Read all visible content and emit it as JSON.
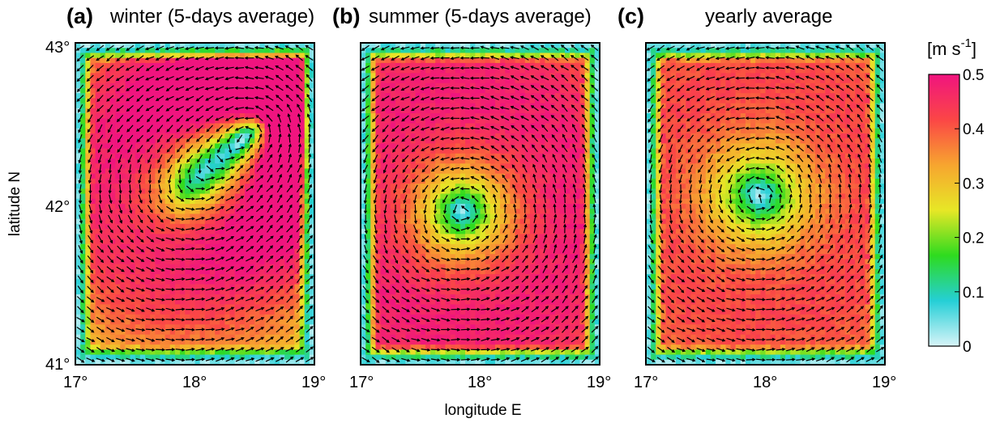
{
  "figure": {
    "xlabel": "longitude E",
    "ylabel": "latitude N",
    "colorbar": {
      "label_base": "[m s",
      "label_exp": "-1",
      "label_end": "]",
      "ticks": [
        "0",
        "0.1",
        "0.2",
        "0.3",
        "0.4",
        "0.5"
      ],
      "colors": [
        "#d8f4f8",
        "#25cfd6",
        "#2edb1f",
        "#e7e726",
        "#f7a52f",
        "#fb4646",
        "#f0147f"
      ]
    }
  },
  "chart_data": [
    {
      "type": "heatmap",
      "panel": "(a)",
      "title": "winter (5-days average)",
      "xlabel": "longitude E",
      "ylabel": "latitude N",
      "x_ticks": [
        "17°",
        "18°",
        "19°"
      ],
      "y_ticks": [
        "43°",
        "42°",
        "41°"
      ],
      "xlim": [
        17,
        19
      ],
      "ylim": [
        41,
        43
      ],
      "clim": [
        0,
        0.5
      ],
      "units": "m s-1",
      "pattern": "two-gyre, strong jet along northern and eastern boundaries",
      "gyres": [
        {
          "lon": 17.85,
          "lat": 42.05,
          "radius_deg": 0.75,
          "rotation": "counterclockwise",
          "max_speed": 0.4
        },
        {
          "lon": 18.55,
          "lat": 42.5,
          "radius_deg": 0.35,
          "rotation": "counterclockwise",
          "max_speed": 0.45
        }
      ]
    },
    {
      "type": "heatmap",
      "panel": "(b)",
      "title": "summer (5-days average)",
      "x_ticks": [
        "17°",
        "18°",
        "19°"
      ],
      "xlim": [
        17,
        19
      ],
      "ylim": [
        41,
        43
      ],
      "clim": [
        0,
        0.5
      ],
      "units": "m s-1",
      "pattern": "single basin-scale cyclonic gyre, max speed near western and southern boundaries",
      "gyres": [
        {
          "lon": 17.85,
          "lat": 41.95,
          "radius_deg": 1.0,
          "rotation": "counterclockwise",
          "max_speed": 0.48
        }
      ]
    },
    {
      "type": "heatmap",
      "panel": "(c)",
      "title": "yearly average",
      "x_ticks": [
        "17°",
        "18°",
        "19°"
      ],
      "xlim": [
        17,
        19
      ],
      "ylim": [
        41,
        43
      ],
      "clim": [
        0,
        0.5
      ],
      "units": "m s-1",
      "pattern": "single basin-scale cyclonic gyre centered slightly north",
      "gyres": [
        {
          "lon": 17.95,
          "lat": 42.05,
          "radius_deg": 1.0,
          "rotation": "counterclockwise",
          "max_speed": 0.42
        }
      ]
    }
  ]
}
